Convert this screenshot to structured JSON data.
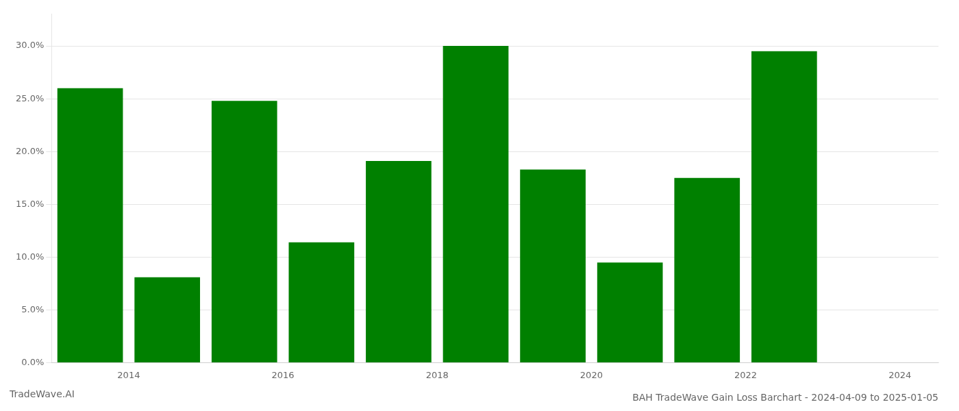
{
  "chart_data": {
    "type": "bar",
    "title": "BAH TradeWave Gain Loss Barchart - 2024-04-09 to 2025-01-05",
    "annotations": [
      "TradeWave.AI"
    ],
    "x": [
      2013.5,
      2014.5,
      2015.5,
      2016.5,
      2017.5,
      2018.5,
      2019.5,
      2020.5,
      2021.5,
      2022.5
    ],
    "values": [
      0.26,
      0.081,
      0.248,
      0.114,
      0.191,
      0.3,
      0.183,
      0.095,
      0.175,
      0.295
    ],
    "color": "#008000",
    "xlim": [
      2013.0,
      2024.5
    ],
    "xticks": [
      2014,
      2016,
      2018,
      2020,
      2022,
      2024
    ],
    "ylim": [
      0,
      0.33
    ],
    "yticks": [
      {
        "value": 0.0,
        "label": "0.0%"
      },
      {
        "value": 0.05,
        "label": "5.0%"
      },
      {
        "value": 0.1,
        "label": "10.0%"
      },
      {
        "value": 0.15,
        "label": "15.0%"
      },
      {
        "value": 0.2,
        "label": "20.0%"
      },
      {
        "value": 0.25,
        "label": "25.0%"
      },
      {
        "value": 0.3,
        "label": "30.0%"
      }
    ],
    "grid": true
  }
}
